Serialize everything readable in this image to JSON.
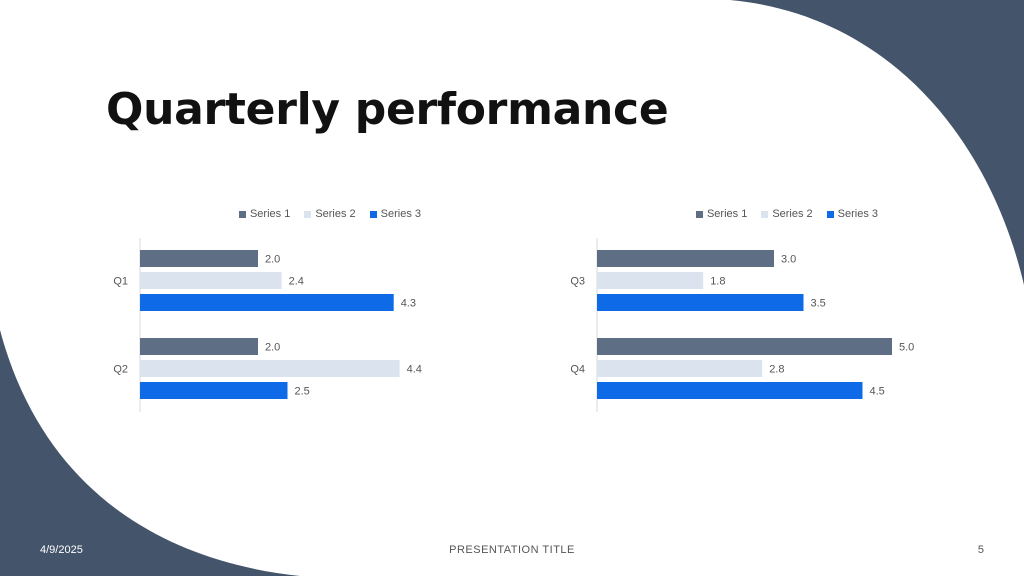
{
  "slide": {
    "title": "Quarterly performance",
    "footer_date": "4/9/2025",
    "footer_title": "PRESENTATION TITLE",
    "page_number": "5"
  },
  "colors": {
    "dark_shape": "#44546a",
    "series1": "#5e6e84",
    "series2": "#dbe3ee",
    "series3": "#0f6ae8"
  },
  "chart_data": [
    {
      "type": "bar",
      "orientation": "horizontal",
      "categories": [
        "Q1",
        "Q2"
      ],
      "series": [
        {
          "name": "Series 1",
          "values": [
            2.0,
            2.0
          ]
        },
        {
          "name": "Series 2",
          "values": [
            2.4,
            4.4
          ]
        },
        {
          "name": "Series 3",
          "values": [
            4.3,
            2.5
          ]
        }
      ],
      "value_labels": [
        [
          "2.0",
          "2.0"
        ],
        [
          "2.4",
          "4.4"
        ],
        [
          "4.3",
          "2.5"
        ]
      ],
      "xlim": [
        0,
        5.0
      ],
      "legend": "top-center",
      "grid": false
    },
    {
      "type": "bar",
      "orientation": "horizontal",
      "categories": [
        "Q3",
        "Q4"
      ],
      "series": [
        {
          "name": "Series 1",
          "values": [
            3.0,
            5.0
          ]
        },
        {
          "name": "Series 2",
          "values": [
            1.8,
            2.8
          ]
        },
        {
          "name": "Series 3",
          "values": [
            3.5,
            4.5
          ]
        }
      ],
      "value_labels": [
        [
          "3.0",
          "5.0"
        ],
        [
          "1.8",
          "2.8"
        ],
        [
          "3.5",
          "4.5"
        ]
      ],
      "xlim": [
        0,
        5.0
      ],
      "legend": "top-center",
      "grid": false
    }
  ]
}
